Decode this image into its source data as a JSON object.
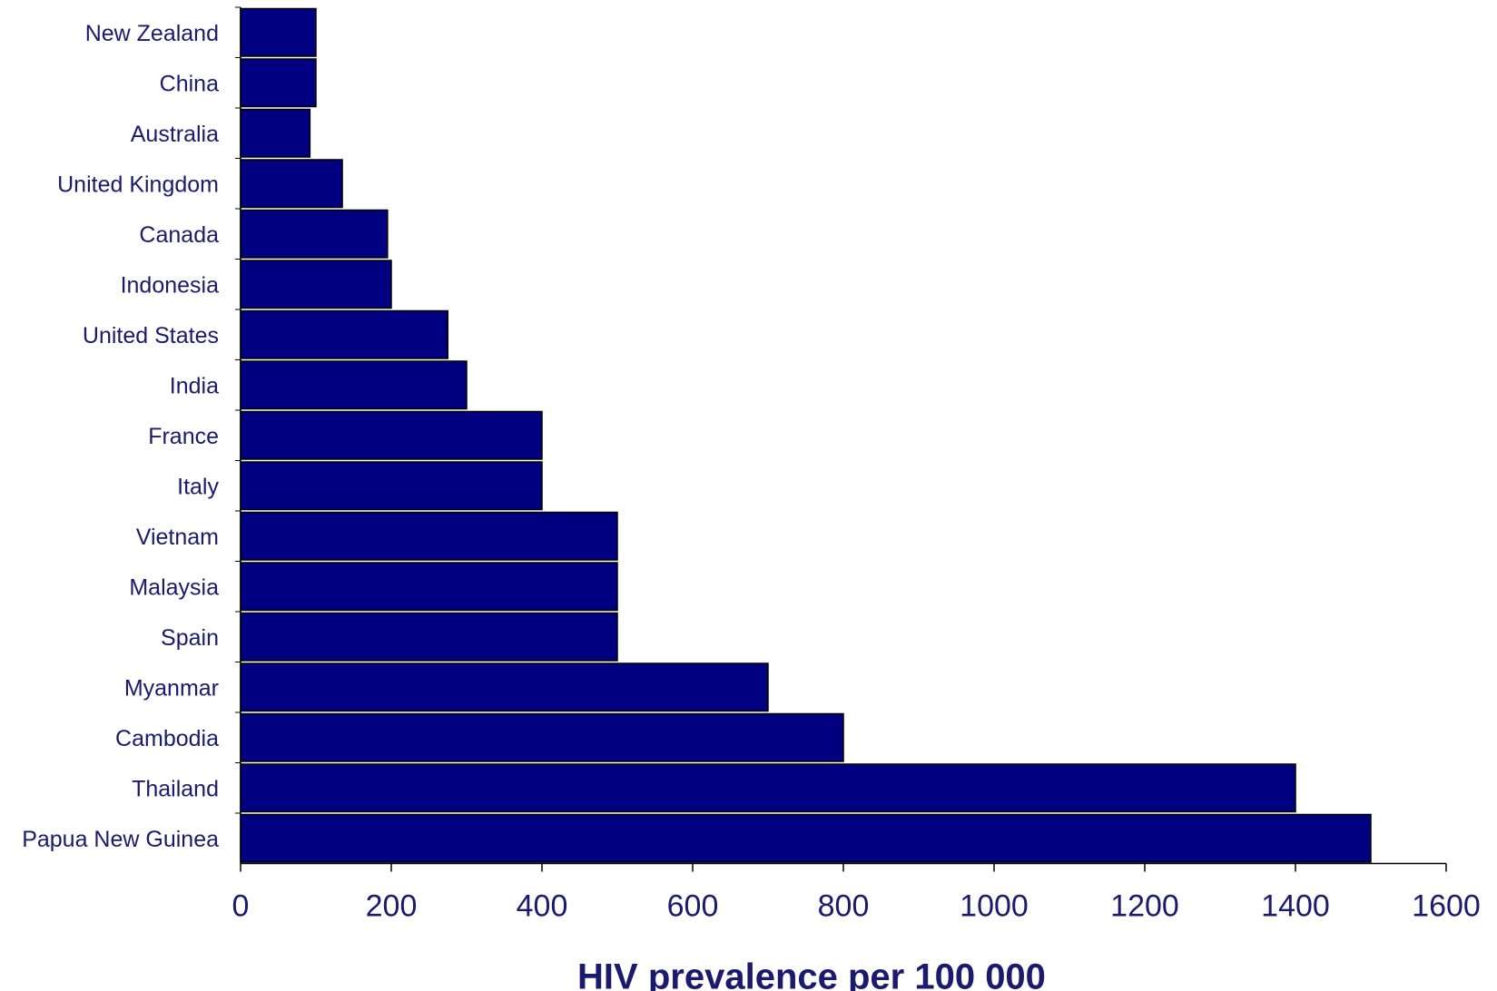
{
  "chart_data": {
    "type": "bar",
    "orientation": "horizontal",
    "categories": [
      "New Zealand",
      "China",
      "Australia",
      "United Kingdom",
      "Canada",
      "Indonesia",
      "United States",
      "India",
      "France",
      "Italy",
      "Vietnam",
      "Malaysia",
      "Spain",
      "Myanmar",
      "Cambodia",
      "Thailand",
      "Papua New Guinea"
    ],
    "values": [
      100,
      100,
      92,
      135,
      195,
      200,
      275,
      300,
      400,
      400,
      500,
      500,
      500,
      700,
      800,
      1400,
      1500
    ],
    "title": "",
    "xlabel": "HIV prevalence per 100 000",
    "ylabel": "",
    "xlim": [
      0,
      1600
    ],
    "xticks": [
      "0",
      "200",
      "400",
      "600",
      "800",
      "1000",
      "1200",
      "1400",
      "1600"
    ],
    "grid": false,
    "legend": "none",
    "colors": {
      "bar": "#000080",
      "bar_border": "#000000",
      "text": "#1a1a6e",
      "axis": "#000000"
    }
  }
}
